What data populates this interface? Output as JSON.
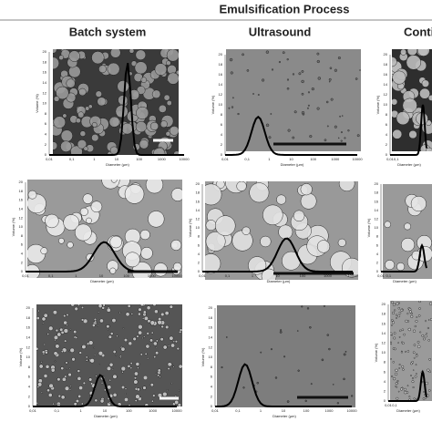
{
  "header": {
    "title": "Emulsification Process"
  },
  "columns": [
    "Batch system",
    "Ultrasound",
    "Conti"
  ],
  "panels": [
    {
      "y_label": "Volume (%)",
      "x_label": "Diameter (µm)",
      "y_ticks": [
        "0",
        "2",
        "4",
        "6",
        "8",
        "10",
        "12",
        "14",
        "16",
        "18",
        "20"
      ],
      "x_ticks": [
        "0,01",
        "0,1",
        "1",
        "10",
        "100",
        "1000",
        "10000"
      ]
    },
    {
      "y_label": "Volume (%)",
      "x_label": "Diameter (µm)",
      "y_ticks": [
        "0",
        "2",
        "4",
        "6",
        "8",
        "10",
        "12",
        "14",
        "16",
        "18",
        "20"
      ],
      "x_ticks": [
        "0,01",
        "0,1",
        "1",
        "10",
        "100",
        "1000",
        "10000"
      ]
    },
    {
      "y_label": "Volume (%)",
      "x_label": "Diameter (µm)",
      "y_ticks": [
        "0",
        "2",
        "4",
        "6",
        "8",
        "10",
        "12",
        "14",
        "16",
        "18",
        "20"
      ],
      "x_ticks": [
        "0,01",
        "0,1"
      ]
    },
    {
      "y_label": "Volume (%)",
      "x_label": "Diameter (µm)",
      "y_ticks": [
        "0",
        "2",
        "4",
        "6",
        "8",
        "10",
        "12",
        "14",
        "16",
        "18",
        "20"
      ],
      "x_ticks": [
        "0,01",
        "0,1",
        "1",
        "10",
        "100",
        "1000",
        "10000"
      ]
    },
    {
      "y_label": "Volume (%)",
      "x_label": "Diameter (µm)",
      "y_ticks": [
        "0",
        "2",
        "4",
        "6",
        "8",
        "10",
        "12",
        "14",
        "16",
        "18",
        "20"
      ],
      "x_ticks": [
        "0,01",
        "0,1",
        "1",
        "10",
        "100",
        "1000",
        "10000"
      ]
    },
    {
      "y_label": "Volume (%)",
      "x_label": "Diameter (µm)",
      "y_ticks": [
        "0",
        "2",
        "4",
        "6",
        "8",
        "10",
        "12",
        "14",
        "16",
        "18",
        "20"
      ],
      "x_ticks": [
        "0,01",
        "0,1"
      ]
    },
    {
      "y_label": "Volume (%)",
      "x_label": "Diameter (µm)",
      "y_ticks": [
        "0",
        "2",
        "4",
        "6",
        "8",
        "10",
        "12",
        "14",
        "16",
        "18",
        "20"
      ],
      "x_ticks": [
        "0,01",
        "0,1",
        "1",
        "10",
        "100",
        "1000",
        "10000"
      ]
    },
    {
      "y_label": "Volume (%)",
      "x_label": "Diameter (µm)",
      "y_ticks": [
        "0",
        "2",
        "4",
        "6",
        "8",
        "10",
        "12",
        "14",
        "16",
        "18",
        "20"
      ],
      "x_ticks": [
        "0,01",
        "0,1",
        "1",
        "10",
        "100",
        "1000",
        "10000"
      ]
    },
    {
      "y_label": "Volume (%)",
      "x_label": "Diameter (µm)",
      "y_ticks": [
        "0",
        "2",
        "4",
        "6",
        "8",
        "10",
        "12",
        "14",
        "16",
        "18",
        "20"
      ],
      "x_ticks": [
        "0,01",
        "0,1"
      ]
    }
  ]
}
